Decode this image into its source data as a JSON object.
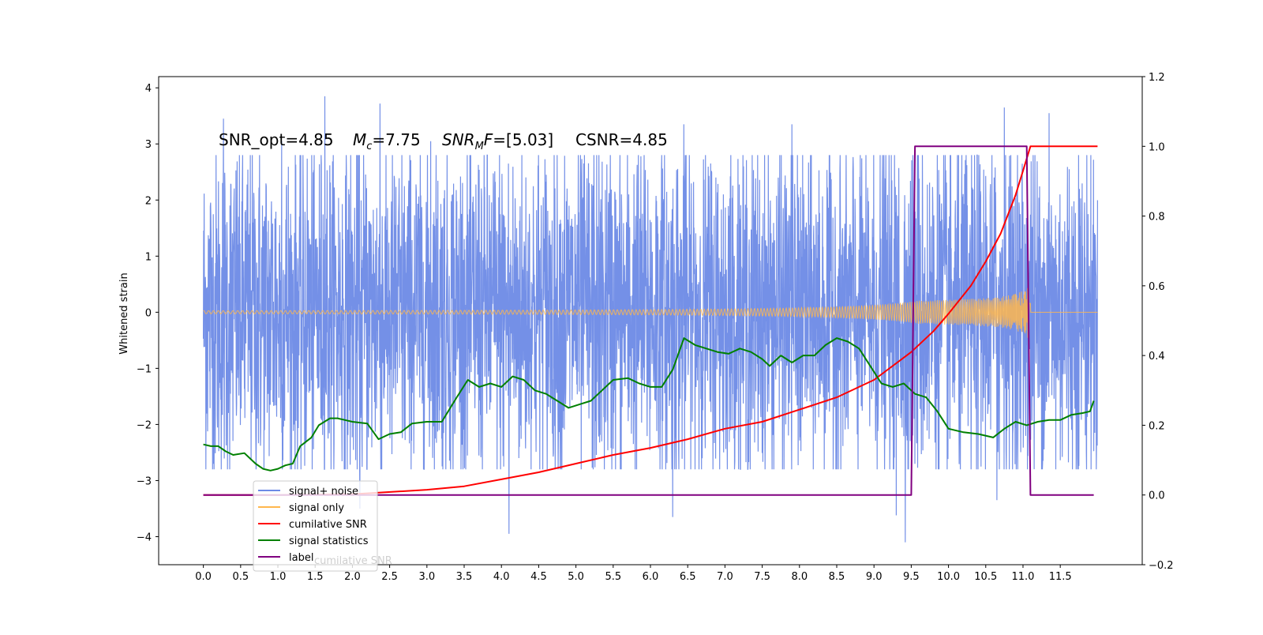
{
  "chart_data": {
    "type": "line",
    "annotation": {
      "snr_opt": "SNR_opt=4.85",
      "mc_symbol": "M",
      "mc_sub": "c",
      "mc_value": "=7.75",
      "snrmf_symbol": "SNR",
      "snrmf_sub": "M",
      "snrmf_f": "F",
      "snrmf_value": "=[5.03]",
      "csnr": "CSNR=4.85"
    },
    "ylabel": "Whitened strain",
    "xlim": [
      -0.6,
      12.6
    ],
    "ylim_left": [
      -4.5,
      4.2
    ],
    "ylim_right": [
      -0.2,
      1.2
    ],
    "x_ticks": [
      "0.0",
      "0.5",
      "1.0",
      "1.5",
      "2.0",
      "2.5",
      "3.0",
      "3.5",
      "4.0",
      "4.5",
      "5.0",
      "5.5",
      "6.0",
      "6.5",
      "7.0",
      "7.5",
      "8.0",
      "8.5",
      "9.0",
      "9.5",
      "10.0",
      "10.5",
      "11.0",
      "11.5"
    ],
    "y_ticks_left": [
      "4",
      "3",
      "2",
      "1",
      "0",
      "−1",
      "−2",
      "−3",
      "−4"
    ],
    "y_ticks_right": [
      "1.2",
      "1.0",
      "0.8",
      "0.6",
      "0.4",
      "0.2",
      "0.0",
      "−0.2"
    ],
    "legend": {
      "location": "lower-left",
      "entries": [
        {
          "label": "signal+ noise",
          "color": "#6d8ae6"
        },
        {
          "label": "signal only",
          "color": "#ffb74d"
        },
        {
          "label": "cumilative SNR",
          "color": "#ff0000"
        },
        {
          "label": "signal statistics",
          "color": "#008000"
        },
        {
          "label": "label",
          "color": "#800080"
        }
      ],
      "ghost_text": "cumilative SNR"
    },
    "series": [
      {
        "name": "signal+ noise",
        "axis": "left",
        "color": "#6d8ae6",
        "style": "noise",
        "x_range": [
          0.0,
          12.0
        ],
        "envelope_typical": 1.6,
        "peak_values": [
          {
            "x": 1.63,
            "y": 3.85
          },
          {
            "x": 2.37,
            "y": 3.72
          },
          {
            "x": 0.27,
            "y": 3.45
          },
          {
            "x": 1.05,
            "y": 3.05
          },
          {
            "x": 3.05,
            "y": 3.05
          },
          {
            "x": 6.45,
            "y": 3.35
          },
          {
            "x": 7.9,
            "y": 3.35
          },
          {
            "x": 10.75,
            "y": 3.65
          },
          {
            "x": 11.35,
            "y": 3.55
          },
          {
            "x": 4.1,
            "y": -3.95
          },
          {
            "x": 9.42,
            "y": -4.1
          },
          {
            "x": 6.3,
            "y": -3.65
          },
          {
            "x": 9.3,
            "y": -3.62
          },
          {
            "x": 2.1,
            "y": -3.5
          },
          {
            "x": 10.65,
            "y": -3.35
          }
        ]
      },
      {
        "name": "signal only",
        "axis": "left",
        "color": "#ffb74d",
        "style": "chirp",
        "x_range": [
          0.0,
          12.0
        ],
        "merger_time": 11.1,
        "peak_amplitude": 0.55
      },
      {
        "name": "cumilative SNR",
        "axis": "right",
        "color": "#ff0000",
        "points": [
          [
            0.0,
            0.0
          ],
          [
            1.0,
            0.0
          ],
          [
            2.0,
            0.002
          ],
          [
            3.0,
            0.015
          ],
          [
            3.5,
            0.025
          ],
          [
            4.0,
            0.045
          ],
          [
            4.5,
            0.065
          ],
          [
            5.0,
            0.09
          ],
          [
            5.5,
            0.115
          ],
          [
            6.0,
            0.135
          ],
          [
            6.5,
            0.16
          ],
          [
            7.0,
            0.19
          ],
          [
            7.5,
            0.21
          ],
          [
            8.0,
            0.245
          ],
          [
            8.5,
            0.28
          ],
          [
            9.0,
            0.33
          ],
          [
            9.5,
            0.41
          ],
          [
            9.8,
            0.47
          ],
          [
            10.0,
            0.52
          ],
          [
            10.3,
            0.6
          ],
          [
            10.5,
            0.67
          ],
          [
            10.7,
            0.75
          ],
          [
            10.9,
            0.86
          ],
          [
            11.0,
            0.93
          ],
          [
            11.1,
            1.0
          ],
          [
            12.0,
            1.0
          ]
        ]
      },
      {
        "name": "signal statistics",
        "axis": "right",
        "color": "#008000",
        "points": [
          [
            0.0,
            0.145
          ],
          [
            0.1,
            0.14
          ],
          [
            0.2,
            0.14
          ],
          [
            0.3,
            0.125
          ],
          [
            0.4,
            0.115
          ],
          [
            0.55,
            0.12
          ],
          [
            0.7,
            0.09
          ],
          [
            0.8,
            0.075
          ],
          [
            0.9,
            0.07
          ],
          [
            1.0,
            0.075
          ],
          [
            1.1,
            0.085
          ],
          [
            1.2,
            0.09
          ],
          [
            1.3,
            0.14
          ],
          [
            1.45,
            0.165
          ],
          [
            1.55,
            0.2
          ],
          [
            1.7,
            0.22
          ],
          [
            1.8,
            0.22
          ],
          [
            1.9,
            0.215
          ],
          [
            2.0,
            0.21
          ],
          [
            2.2,
            0.205
          ],
          [
            2.35,
            0.16
          ],
          [
            2.5,
            0.175
          ],
          [
            2.65,
            0.18
          ],
          [
            2.8,
            0.205
          ],
          [
            3.0,
            0.21
          ],
          [
            3.2,
            0.21
          ],
          [
            3.4,
            0.28
          ],
          [
            3.55,
            0.33
          ],
          [
            3.7,
            0.31
          ],
          [
            3.85,
            0.32
          ],
          [
            4.0,
            0.31
          ],
          [
            4.15,
            0.34
          ],
          [
            4.3,
            0.33
          ],
          [
            4.45,
            0.3
          ],
          [
            4.6,
            0.29
          ],
          [
            4.75,
            0.27
          ],
          [
            4.9,
            0.25
          ],
          [
            5.05,
            0.26
          ],
          [
            5.2,
            0.27
          ],
          [
            5.35,
            0.3
          ],
          [
            5.5,
            0.33
          ],
          [
            5.7,
            0.335
          ],
          [
            5.85,
            0.32
          ],
          [
            6.0,
            0.31
          ],
          [
            6.15,
            0.31
          ],
          [
            6.3,
            0.36
          ],
          [
            6.45,
            0.45
          ],
          [
            6.6,
            0.43
          ],
          [
            6.75,
            0.42
          ],
          [
            6.9,
            0.41
          ],
          [
            7.05,
            0.405
          ],
          [
            7.2,
            0.42
          ],
          [
            7.35,
            0.41
          ],
          [
            7.5,
            0.39
          ],
          [
            7.6,
            0.37
          ],
          [
            7.75,
            0.4
          ],
          [
            7.9,
            0.38
          ],
          [
            8.05,
            0.4
          ],
          [
            8.2,
            0.4
          ],
          [
            8.35,
            0.43
          ],
          [
            8.5,
            0.45
          ],
          [
            8.65,
            0.44
          ],
          [
            8.8,
            0.42
          ],
          [
            8.95,
            0.37
          ],
          [
            9.1,
            0.32
          ],
          [
            9.25,
            0.31
          ],
          [
            9.4,
            0.32
          ],
          [
            9.55,
            0.29
          ],
          [
            9.7,
            0.28
          ],
          [
            9.85,
            0.24
          ],
          [
            10.0,
            0.19
          ],
          [
            10.2,
            0.18
          ],
          [
            10.4,
            0.175
          ],
          [
            10.6,
            0.165
          ],
          [
            10.75,
            0.19
          ],
          [
            10.9,
            0.21
          ],
          [
            11.05,
            0.2
          ],
          [
            11.2,
            0.21
          ],
          [
            11.35,
            0.215
          ],
          [
            11.5,
            0.215
          ],
          [
            11.65,
            0.23
          ],
          [
            11.8,
            0.235
          ],
          [
            11.9,
            0.24
          ],
          [
            11.95,
            0.27
          ]
        ]
      },
      {
        "name": "label",
        "axis": "right",
        "color": "#800080",
        "points": [
          [
            0.0,
            0.0
          ],
          [
            9.5,
            0.0
          ],
          [
            9.55,
            1.0
          ],
          [
            11.05,
            1.0
          ],
          [
            11.1,
            0.0
          ],
          [
            11.95,
            0.0
          ]
        ]
      }
    ]
  }
}
